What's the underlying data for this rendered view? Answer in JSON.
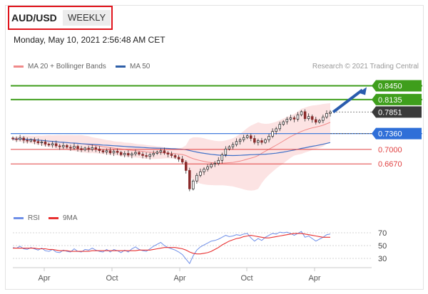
{
  "header": {
    "pair": "AUD/USD",
    "period": "WEEKLY",
    "timestamp": "Monday, May 10, 2021 2:56:48 AM CET"
  },
  "legend": {
    "bollinger": "MA 20 + Bollinger Bands",
    "ma50": "MA 50",
    "rsi": "RSI",
    "ma9": "9MA"
  },
  "credit": "Research © 2021 Trading Central",
  "colors": {
    "up_candle": "#1a1a1a",
    "down_candle": "#8a2a2a",
    "bollinger": "#f08a8a",
    "ma50": "#3f70c8",
    "resistance": "#3f9e1c",
    "support_main": "#2f6fd8",
    "support": "#e04040",
    "rsi": "#6f8fe8",
    "rsi_ma": "#e83030"
  },
  "chart_data": [
    {
      "type": "candlestick",
      "x_tick_labels": [
        "Apr",
        "Oct",
        "Apr",
        "Oct",
        "Apr"
      ],
      "levels": [
        {
          "value": 0.845,
          "label": "0.8450",
          "kind": "resistance"
        },
        {
          "value": 0.8135,
          "label": "0.8135",
          "kind": "resistance"
        },
        {
          "value": 0.7851,
          "label": "0.7851",
          "kind": "last"
        },
        {
          "value": 0.736,
          "label": "0.7360",
          "kind": "pivot"
        },
        {
          "value": 0.7,
          "label": "0.7000",
          "kind": "support"
        },
        {
          "value": 0.667,
          "label": "0.6670",
          "kind": "support"
        }
      ],
      "ylim": [
        0.57,
        0.875
      ],
      "closes": [
        0.724,
        0.723,
        0.726,
        0.721,
        0.719,
        0.722,
        0.718,
        0.715,
        0.717,
        0.712,
        0.71,
        0.713,
        0.708,
        0.706,
        0.709,
        0.705,
        0.703,
        0.707,
        0.702,
        0.699,
        0.703,
        0.7,
        0.704,
        0.701,
        0.697,
        0.694,
        0.697,
        0.692,
        0.696,
        0.693,
        0.688,
        0.691,
        0.687,
        0.69,
        0.693,
        0.689,
        0.686,
        0.684,
        0.688,
        0.691,
        0.694,
        0.697,
        0.692,
        0.689,
        0.686,
        0.682,
        0.678,
        0.671,
        0.652,
        0.61,
        0.628,
        0.641,
        0.649,
        0.655,
        0.66,
        0.666,
        0.668,
        0.675,
        0.688,
        0.701,
        0.706,
        0.711,
        0.718,
        0.722,
        0.727,
        0.731,
        0.725,
        0.716,
        0.72,
        0.716,
        0.722,
        0.73,
        0.741,
        0.747,
        0.757,
        0.763,
        0.769,
        0.772,
        0.769,
        0.779,
        0.786,
        0.77,
        0.775,
        0.768,
        0.762,
        0.766,
        0.774,
        0.782,
        0.785
      ]
    },
    {
      "type": "line",
      "title": "RSI",
      "y_tick_labels": [
        "70",
        "50",
        "30"
      ],
      "ylim": [
        20,
        80
      ],
      "series": [
        {
          "name": "RSI",
          "values": [
            47,
            46,
            49,
            45,
            44,
            47,
            45,
            43,
            46,
            42,
            41,
            44,
            40,
            39,
            43,
            41,
            40,
            45,
            41,
            40,
            44,
            43,
            46,
            43,
            41,
            40,
            44,
            40,
            44,
            42,
            39,
            43,
            40,
            45,
            48,
            44,
            42,
            41,
            45,
            49,
            52,
            55,
            50,
            47,
            45,
            43,
            40,
            36,
            29,
            22,
            34,
            43,
            48,
            51,
            54,
            57,
            58,
            60,
            63,
            66,
            64,
            65,
            67,
            66,
            68,
            69,
            62,
            57,
            61,
            58,
            63,
            66,
            69,
            68,
            71,
            70,
            71,
            69,
            66,
            69,
            72,
            63,
            65,
            61,
            57,
            60,
            63,
            67,
            68
          ]
        },
        {
          "name": "9MA",
          "values": [
            46,
            46,
            46,
            46,
            46,
            46,
            46,
            45,
            45,
            45,
            44,
            44,
            43,
            42,
            42,
            42,
            41,
            41,
            41,
            41,
            41,
            41,
            42,
            42,
            42,
            42,
            42,
            42,
            42,
            42,
            42,
            42,
            42,
            42,
            42,
            43,
            43,
            43,
            43,
            44,
            45,
            46,
            47,
            47,
            47,
            47,
            46,
            45,
            43,
            40,
            38,
            37,
            37,
            38,
            39,
            41,
            44,
            47,
            51,
            54,
            57,
            59,
            61,
            62,
            64,
            65,
            66,
            65,
            64,
            63,
            62,
            62,
            63,
            64,
            65,
            66,
            67,
            68,
            69,
            69,
            69,
            68,
            67,
            66,
            65,
            64,
            63,
            63,
            63
          ]
        }
      ]
    }
  ]
}
